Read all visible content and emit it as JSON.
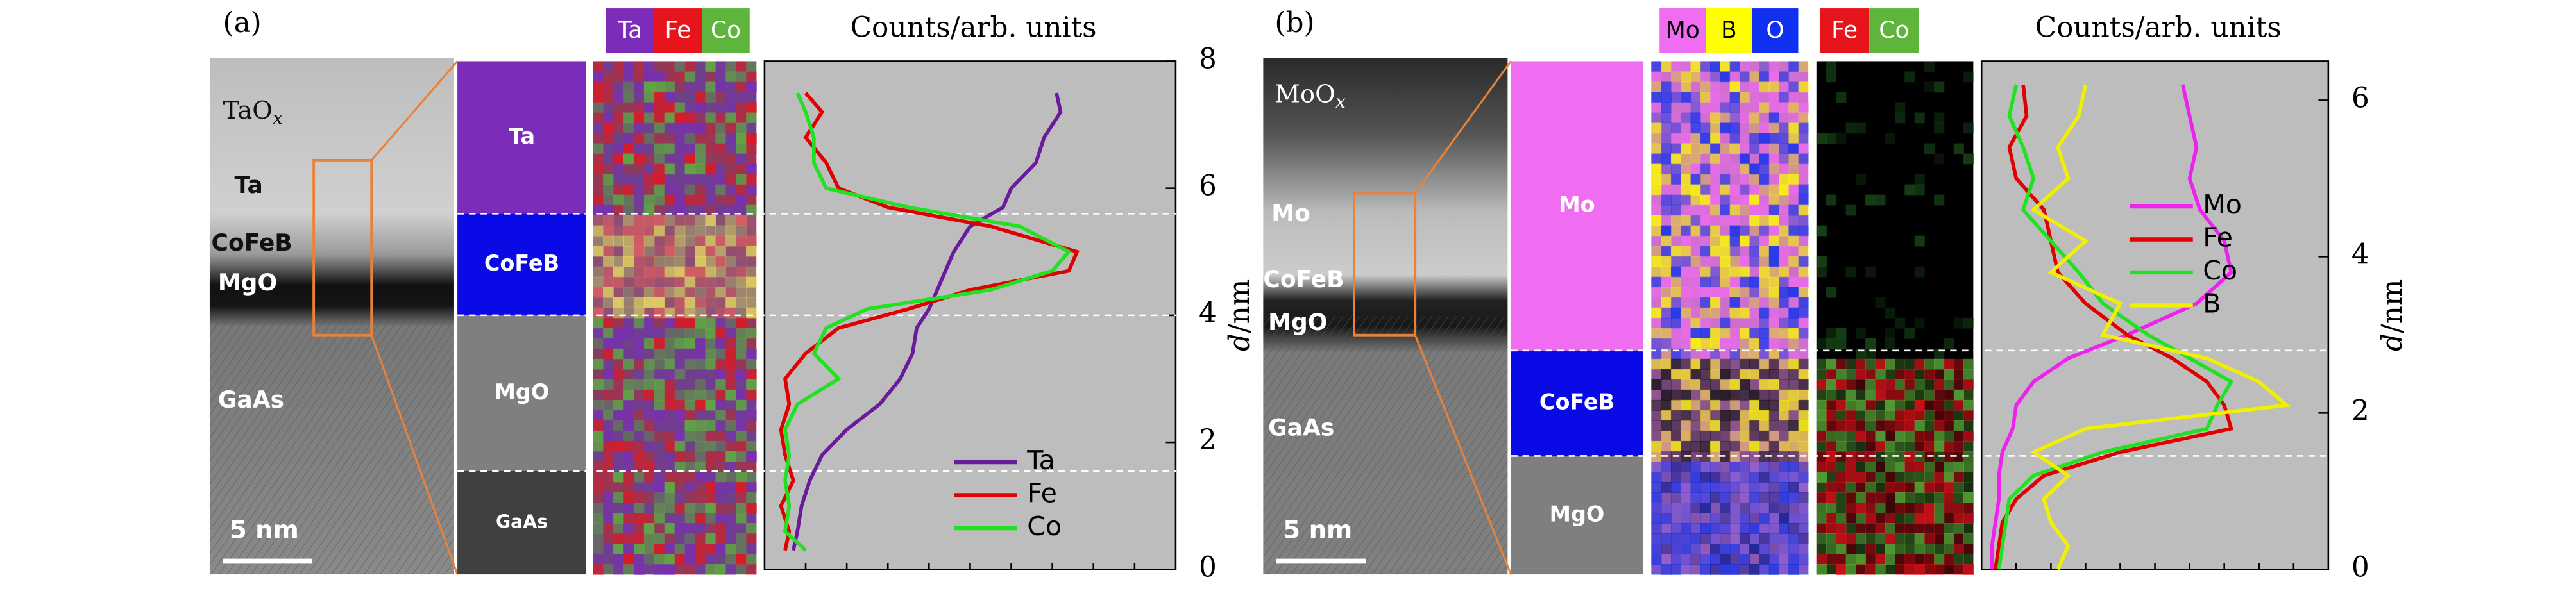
{
  "chart_data": [
    {
      "type": "line",
      "panel": "(a)",
      "title": "Counts/arb. units",
      "ylabel": {
        "var": "d",
        "unit": "/nm"
      },
      "ylim": [
        0,
        8
      ],
      "yticks": [
        0,
        2,
        4,
        6,
        8
      ],
      "xlim": [
        0,
        1
      ],
      "tem": {
        "oxide": {
          "text": "TaO",
          "sub": "x"
        },
        "labels": [
          "Ta",
          "CoFeB",
          "MgO",
          "GaAs"
        ],
        "scale": "5 nm"
      },
      "layers": [
        {
          "name": "Ta",
          "color": "#7b2cb8"
        },
        {
          "name": "CoFeB",
          "color": "#0a0ae6"
        },
        {
          "name": "MgO",
          "color": "#7f7f7f"
        },
        {
          "name": "GaAs",
          "color": "#404040"
        }
      ],
      "interfaces": [
        5.6,
        4.0,
        1.55
      ],
      "maps": [
        [
          {
            "name": "Ta",
            "color": "#7b2cb8"
          },
          {
            "name": "Fe",
            "color": "#e8141c"
          },
          {
            "name": "Co",
            "color": "#5fb43c"
          }
        ]
      ],
      "series": [
        {
          "name": "Ta",
          "color": "#6a1b9a",
          "d": [
            7.5,
            7.2,
            6.8,
            6.4,
            6.0,
            5.7,
            5.4,
            5.0,
            4.7,
            4.4,
            4.1,
            3.8,
            3.4,
            3.0,
            2.6,
            2.2,
            1.8,
            1.4,
            1.0,
            0.6,
            0.3
          ],
          "values": [
            0.71,
            0.72,
            0.68,
            0.66,
            0.6,
            0.58,
            0.5,
            0.46,
            0.44,
            0.42,
            0.4,
            0.37,
            0.36,
            0.33,
            0.28,
            0.2,
            0.14,
            0.11,
            0.09,
            0.08,
            0.07
          ]
        },
        {
          "name": "Fe",
          "color": "#e00000",
          "d": [
            7.5,
            7.2,
            6.8,
            6.4,
            6.0,
            5.7,
            5.4,
            5.0,
            4.7,
            4.4,
            4.1,
            3.8,
            3.4,
            3.0,
            2.6,
            2.2,
            1.8,
            1.4,
            1.0,
            0.6,
            0.3
          ],
          "values": [
            0.1,
            0.14,
            0.1,
            0.15,
            0.18,
            0.3,
            0.55,
            0.76,
            0.74,
            0.5,
            0.35,
            0.18,
            0.1,
            0.05,
            0.06,
            0.04,
            0.05,
            0.07,
            0.04,
            0.06,
            0.05
          ]
        },
        {
          "name": "Co",
          "color": "#22e022",
          "d": [
            7.5,
            7.2,
            6.8,
            6.4,
            6.0,
            5.7,
            5.4,
            5.0,
            4.7,
            4.4,
            4.1,
            3.8,
            3.4,
            3.0,
            2.6,
            2.2,
            1.8,
            1.4,
            1.0,
            0.6,
            0.3
          ],
          "values": [
            0.08,
            0.1,
            0.12,
            0.12,
            0.15,
            0.35,
            0.62,
            0.74,
            0.7,
            0.55,
            0.25,
            0.15,
            0.12,
            0.18,
            0.08,
            0.05,
            0.06,
            0.05,
            0.06,
            0.05,
            0.1
          ]
        }
      ],
      "legend": "lower right"
    },
    {
      "type": "line",
      "panel": "(b)",
      "title": "Counts/arb. units",
      "ylabel": {
        "var": "d",
        "unit": "/nm"
      },
      "ylim": [
        0,
        6.5
      ],
      "yticks": [
        0,
        2,
        4,
        6
      ],
      "xlim": [
        0,
        1
      ],
      "tem": {
        "oxide": {
          "text": "MoO",
          "sub": "x"
        },
        "labels": [
          "Mo",
          "CoFeB",
          "MgO",
          "GaAs"
        ],
        "scale": "5 nm"
      },
      "layers": [
        {
          "name": "Mo",
          "color": "#f06cf0"
        },
        {
          "name": "CoFeB",
          "color": "#0a0ae6"
        },
        {
          "name": "MgO",
          "color": "#7f7f7f"
        }
      ],
      "interfaces": [
        2.8,
        1.45
      ],
      "maps": [
        [
          {
            "name": "Mo",
            "color": "#f06cf0"
          },
          {
            "name": "B",
            "color": "#ffff00"
          },
          {
            "name": "O",
            "color": "#1030f0"
          }
        ],
        [
          {
            "name": "Fe",
            "color": "#e8141c"
          },
          {
            "name": "Co",
            "color": "#5fb43c"
          }
        ]
      ],
      "series": [
        {
          "name": "Mo",
          "color": "#ee22ee",
          "d": [
            6.2,
            5.8,
            5.4,
            5.0,
            4.6,
            4.2,
            3.8,
            3.4,
            3.0,
            2.7,
            2.4,
            2.1,
            1.8,
            1.5,
            1.2,
            0.9,
            0.6,
            0.3,
            0.0
          ],
          "values": [
            0.58,
            0.6,
            0.62,
            0.6,
            0.63,
            0.7,
            0.72,
            0.62,
            0.42,
            0.25,
            0.15,
            0.1,
            0.09,
            0.06,
            0.05,
            0.05,
            0.04,
            0.03,
            0.03
          ]
        },
        {
          "name": "Fe",
          "color": "#e00000",
          "d": [
            6.2,
            5.8,
            5.4,
            5.0,
            4.6,
            4.2,
            3.8,
            3.4,
            3.0,
            2.7,
            2.4,
            2.1,
            1.8,
            1.5,
            1.2,
            0.9,
            0.6,
            0.3,
            0.0
          ],
          "values": [
            0.12,
            0.13,
            0.08,
            0.1,
            0.18,
            0.2,
            0.22,
            0.3,
            0.42,
            0.55,
            0.65,
            0.7,
            0.72,
            0.4,
            0.18,
            0.1,
            0.06,
            0.05,
            0.04
          ]
        },
        {
          "name": "Co",
          "color": "#22e022",
          "d": [
            6.2,
            5.8,
            5.4,
            5.0,
            4.6,
            4.2,
            3.8,
            3.4,
            3.0,
            2.7,
            2.4,
            2.1,
            1.8,
            1.5,
            1.2,
            0.9,
            0.6,
            0.3,
            0.0
          ],
          "values": [
            0.1,
            0.08,
            0.12,
            0.15,
            0.12,
            0.2,
            0.28,
            0.35,
            0.48,
            0.6,
            0.72,
            0.68,
            0.65,
            0.35,
            0.15,
            0.08,
            0.07,
            0.06,
            0.05
          ]
        },
        {
          "name": "B",
          "color": "#f0f000",
          "d": [
            6.2,
            5.8,
            5.4,
            5.0,
            4.6,
            4.2,
            3.8,
            3.4,
            3.0,
            2.7,
            2.4,
            2.1,
            1.8,
            1.5,
            1.2,
            0.9,
            0.6,
            0.3,
            0.0
          ],
          "values": [
            0.3,
            0.28,
            0.22,
            0.25,
            0.15,
            0.3,
            0.2,
            0.4,
            0.35,
            0.65,
            0.8,
            0.88,
            0.3,
            0.15,
            0.25,
            0.18,
            0.2,
            0.25,
            0.22
          ]
        }
      ],
      "legend": "upper right"
    }
  ]
}
